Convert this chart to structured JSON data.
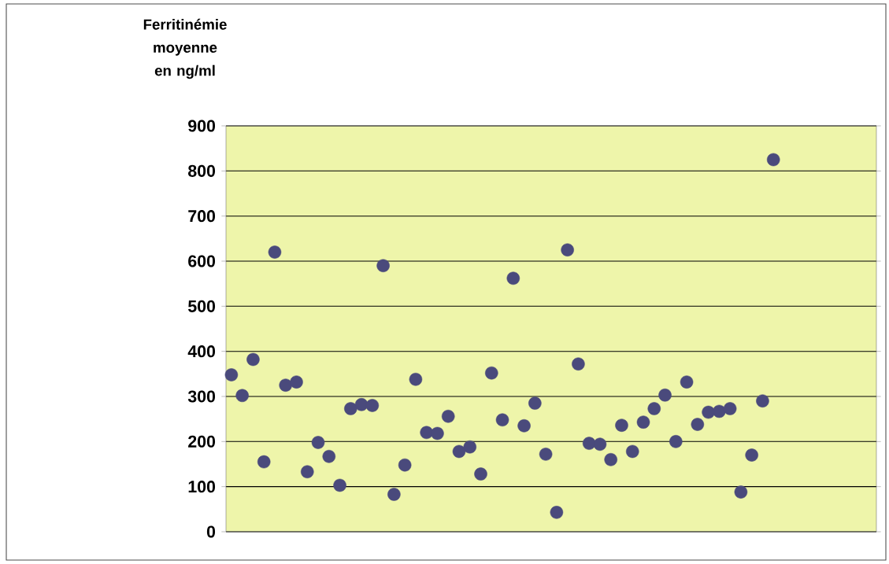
{
  "chart_data": {
    "type": "scatter",
    "ylabel": "Ferritinémie moyenne en ng/ml",
    "categories": [
      null,
      null,
      null,
      null,
      null,
      null,
      null,
      null,
      null,
      null,
      null,
      null,
      null,
      null,
      null,
      null,
      null,
      null,
      null,
      null,
      null,
      null,
      null,
      null,
      null,
      null,
      null,
      null,
      null,
      null,
      null,
      null,
      null,
      null,
      null,
      null,
      null,
      null,
      null,
      null,
      null,
      null,
      null,
      null,
      null,
      null,
      null,
      null,
      null,
      null,
      null,
      null,
      null,
      null,
      null,
      null,
      null,
      null,
      null,
      null
    ],
    "values": [
      348,
      302,
      382,
      155,
      620,
      325,
      332,
      133,
      198,
      167,
      103,
      273,
      282,
      280,
      590,
      83,
      148,
      338,
      220,
      218,
      256,
      178,
      188,
      128,
      352,
      248,
      562,
      235,
      285,
      172,
      43,
      625,
      372,
      196,
      194,
      160,
      236,
      178,
      243,
      273,
      303,
      200,
      332,
      238,
      265,
      267,
      273,
      88,
      170,
      290,
      825,
      null,
      null,
      null,
      null,
      null,
      null,
      null,
      null,
      null
    ],
    "color": "#4a4a7c",
    "marker": "circle",
    "ylim": [
      0,
      900
    ],
    "yticks": [
      0,
      100,
      200,
      300,
      400,
      500,
      600,
      700,
      800,
      900
    ],
    "grid": "y",
    "tick_labels": "y"
  }
}
